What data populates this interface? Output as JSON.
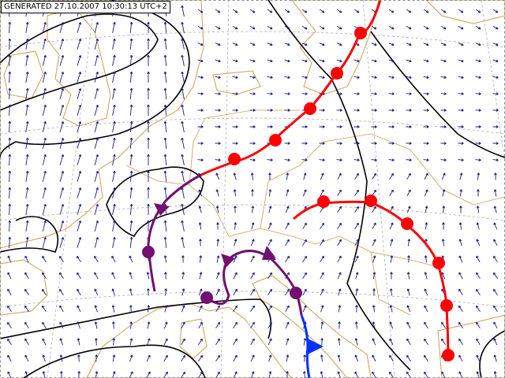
{
  "header": {
    "generated": "GENERATED 27.10.2007 10:30:13 UTC+2"
  }
}
